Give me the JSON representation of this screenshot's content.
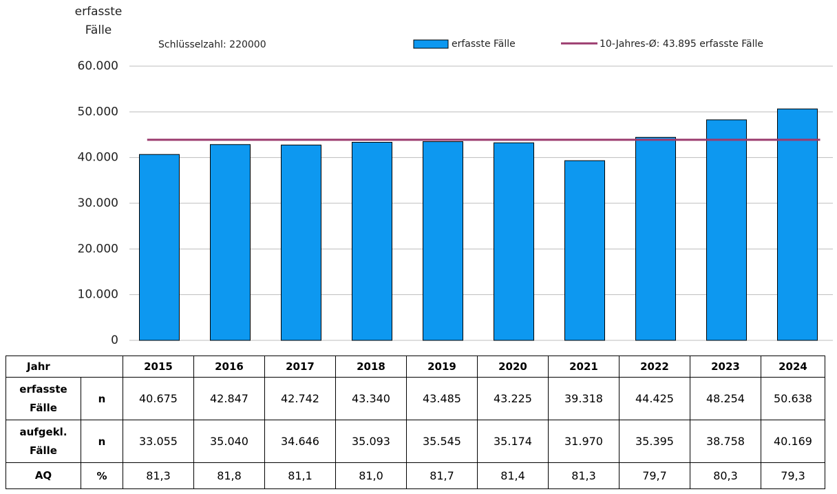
{
  "chart_data": {
    "type": "bar",
    "y_label": "erfasste Fälle",
    "subtitle": "Schlüsselzahl: 220000",
    "table_header": "Jahr",
    "categories": [
      "2015",
      "2016",
      "2017",
      "2018",
      "2019",
      "2020",
      "2021",
      "2022",
      "2023",
      "2024"
    ],
    "series": [
      {
        "name": "erfasste Fälle",
        "row_label": "erfasste Fälle",
        "unit": "n",
        "color": "#0d98f0",
        "values": [
          40675,
          42847,
          42742,
          43340,
          43485,
          43225,
          39318,
          44425,
          48254,
          50638
        ],
        "value_labels": [
          "40.675",
          "42.847",
          "42.742",
          "43.340",
          "43.485",
          "43.225",
          "39.318",
          "44.425",
          "48.254",
          "50.638"
        ]
      }
    ],
    "average": {
      "name": "10-Jahres-Ø: 43.895 erfasste Fälle",
      "value": 43895,
      "color": "#9b3b6e"
    },
    "table_rows": [
      {
        "name": "aufgekl. Fälle",
        "unit": "n",
        "values": [
          33055,
          35040,
          34646,
          35093,
          35545,
          35174,
          31970,
          35395,
          38758,
          40169
        ],
        "value_labels": [
          "33.055",
          "35.040",
          "34.646",
          "35.093",
          "35.545",
          "35.174",
          "31.970",
          "35.395",
          "38.758",
          "40.169"
        ]
      },
      {
        "name": "AQ",
        "unit": "%",
        "values": [
          81.3,
          81.8,
          81.1,
          81.0,
          81.7,
          81.4,
          81.3,
          79.7,
          80.3,
          79.3
        ],
        "value_labels": [
          "81,3",
          "81,8",
          "81,1",
          "81,0",
          "81,7",
          "81,4",
          "81,3",
          "79,7",
          "80,3",
          "79,3"
        ]
      }
    ],
    "ylim": [
      0,
      60000
    ],
    "yticks": [
      0,
      {
        "value": 10000,
        "label": "10.000"
      },
      {
        "value": 20000,
        "label": "20.000"
      },
      {
        "value": 30000,
        "label": "30.000"
      },
      {
        "value": 40000,
        "label": "40.000"
      },
      {
        "value": 50000,
        "label": "50.000"
      },
      {
        "value": 60000,
        "label": "60.000"
      }
    ],
    "grid": true
  }
}
